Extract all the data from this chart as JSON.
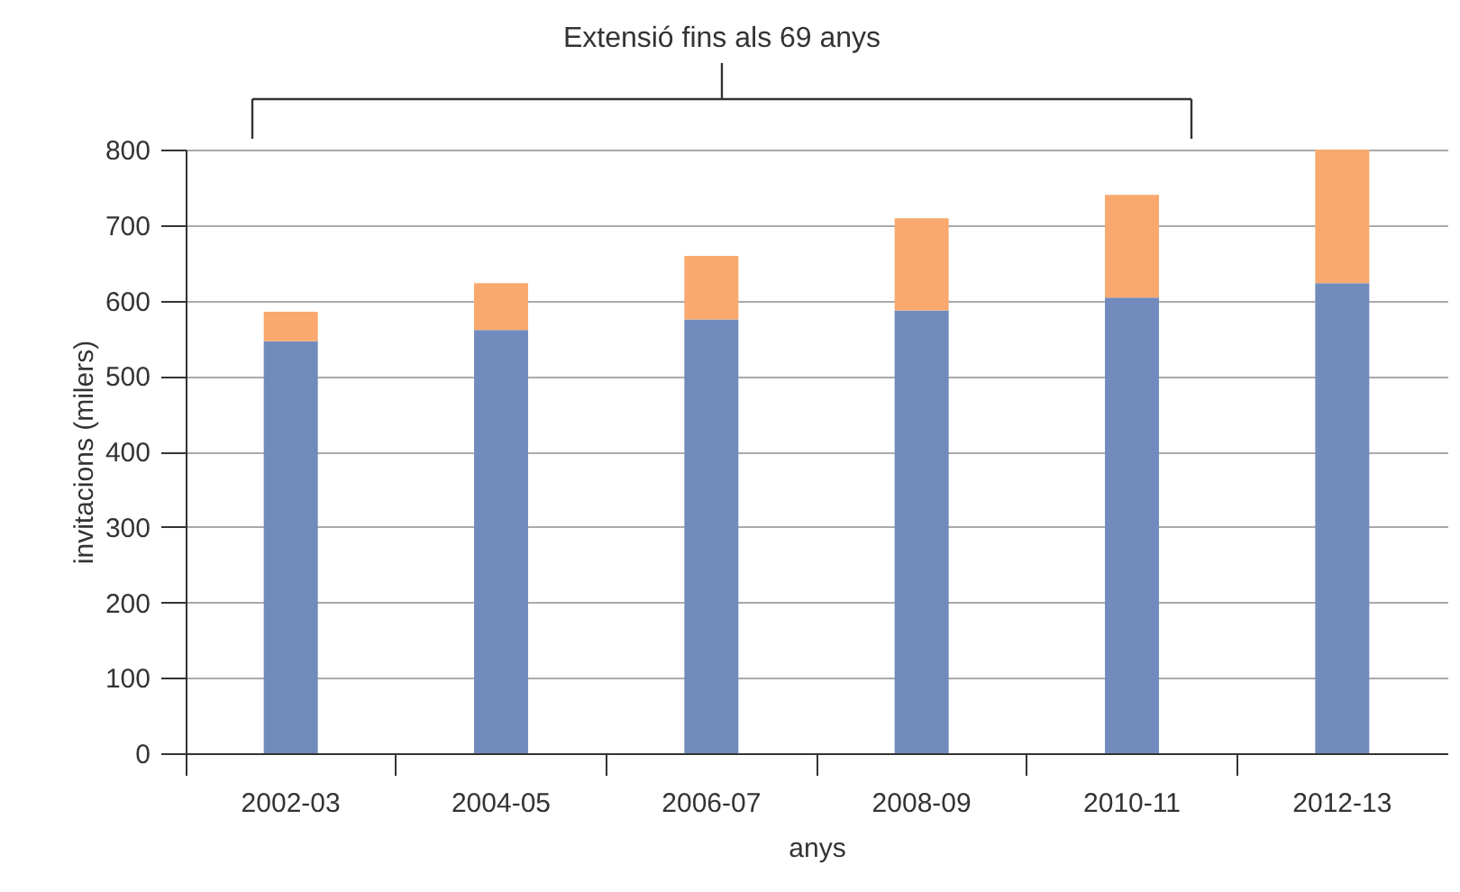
{
  "chart_data": {
    "type": "bar",
    "stacked": true,
    "xlabel": "anys",
    "ylabel": "invitacions (milers)",
    "annotations": [
      "Extensió fins als 69 anys"
    ],
    "categories": [
      "2002-03",
      "2004-05",
      "2006-07",
      "2008-09",
      "2010-11",
      "2012-13"
    ],
    "series": [
      {
        "color": "#728bbd",
        "values": [
          546,
          561,
          575,
          587,
          604,
          623
        ]
      },
      {
        "color": "#f9a96e",
        "values": [
          39,
          62,
          84,
          122,
          136,
          177
        ]
      }
    ],
    "ylim": [
      0,
      800
    ],
    "yticks": [
      0,
      100,
      200,
      300,
      400,
      500,
      600,
      700,
      800
    ],
    "grid": "y"
  }
}
